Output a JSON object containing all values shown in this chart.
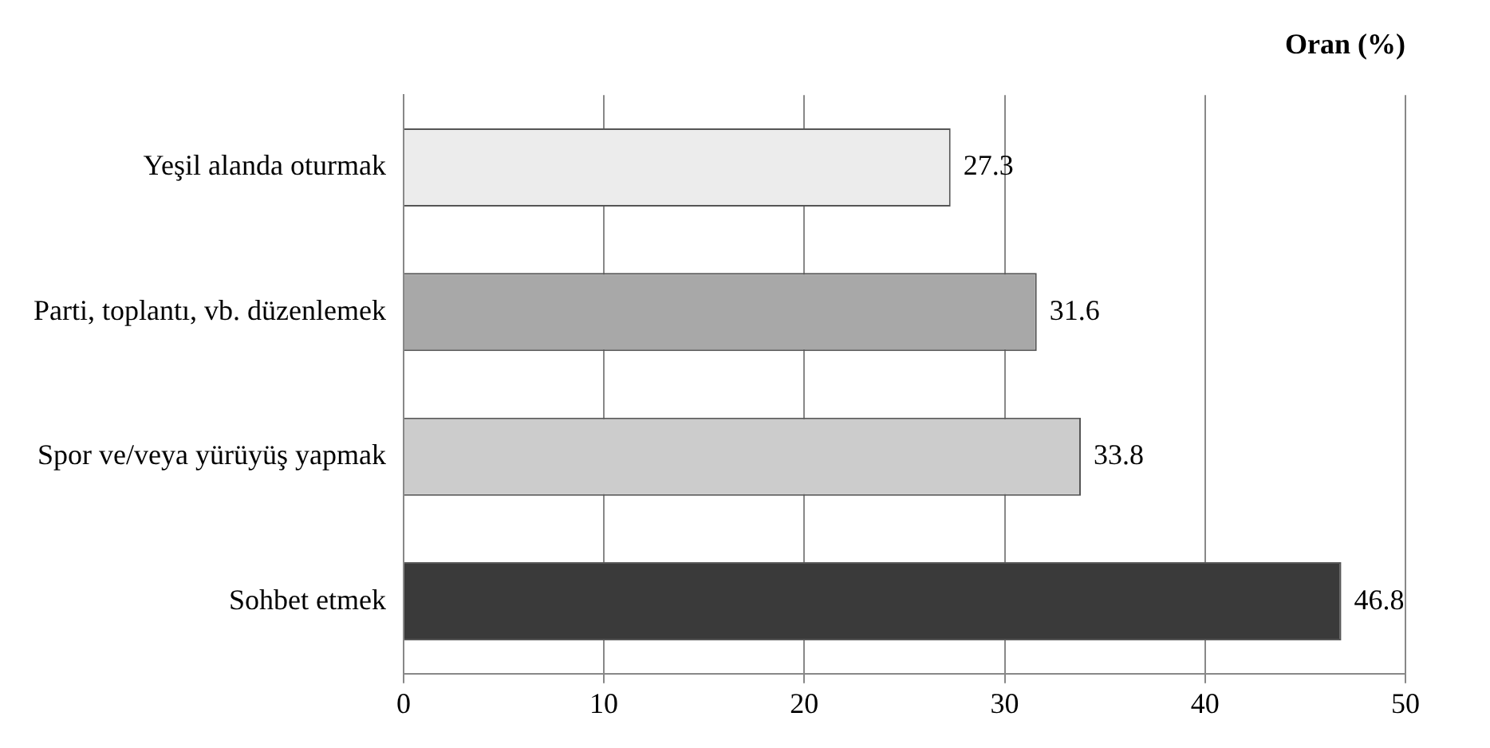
{
  "chart_data": {
    "type": "bar",
    "orientation": "horizontal",
    "title": "Oran (%)",
    "categories": [
      "Yeşil alanda oturmak",
      "Parti, toplantı, vb. düzenlemek",
      "Spor ve/veya yürüyüş yapmak",
      "Sohbet etmek"
    ],
    "values": [
      27.3,
      31.6,
      33.8,
      46.8
    ],
    "colors": [
      "#ececec",
      "#a8a8a8",
      "#cccccc",
      "#3a3a3a"
    ],
    "xlim": [
      0,
      50
    ],
    "xticks": [
      0,
      10,
      20,
      30,
      40,
      50
    ],
    "grid": "x",
    "data_labels": true,
    "legend": false
  }
}
